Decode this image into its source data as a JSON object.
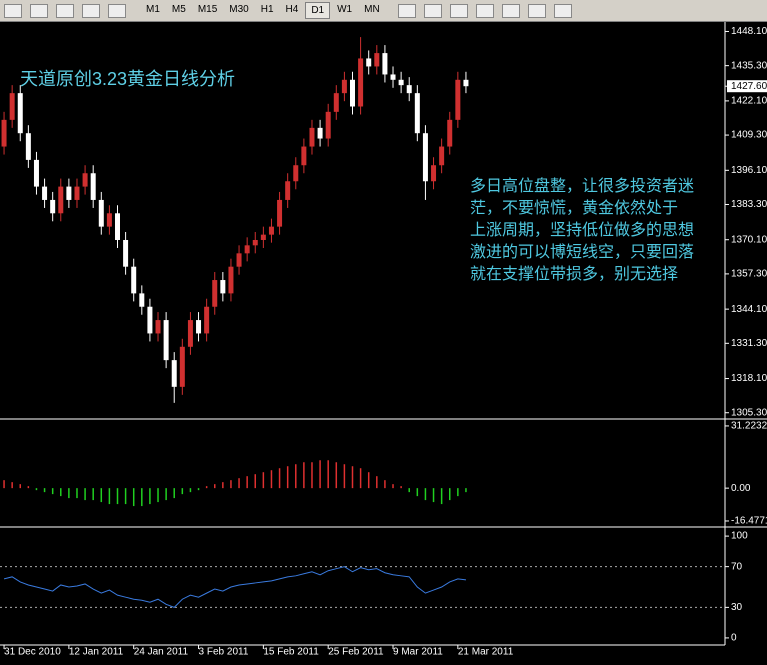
{
  "toolbar": {
    "timeframes": [
      "M1",
      "M5",
      "M15",
      "M30",
      "H1",
      "H4",
      "D1",
      "W1",
      "MN"
    ],
    "active": "D1"
  },
  "chart_data": [
    {
      "type": "candlestick",
      "title": "天道原创3.23黄金日线分析",
      "annotation": [
        "多日高位盘整，让很多投资者迷",
        "茫，不要惊慌，黄金依然处于",
        "上涨周期，坚持低位做多的思想",
        "激进的可以博短线空，只要回落",
        "就在支撑位带损多，别无选择"
      ],
      "categories": [
        "31 Dec 2010",
        null,
        null,
        null,
        null,
        null,
        null,
        null,
        "12 Jan 2011",
        null,
        null,
        null,
        null,
        null,
        null,
        null,
        "24 Jan 2011",
        null,
        null,
        null,
        null,
        null,
        null,
        null,
        "3 Feb 2011",
        null,
        null,
        null,
        null,
        null,
        null,
        null,
        "15 Feb 2011",
        null,
        null,
        null,
        null,
        null,
        null,
        null,
        "25 Feb 2011",
        null,
        null,
        null,
        null,
        null,
        null,
        null,
        "9 Mar 2011",
        null,
        null,
        null,
        null,
        null,
        null,
        null,
        "21 Mar 2011",
        null
      ],
      "open": [
        1405,
        1415,
        1425,
        1410,
        1400,
        1390,
        1385,
        1380,
        1390,
        1385,
        1390,
        1395,
        1385,
        1375,
        1380,
        1370,
        1360,
        1350,
        1345,
        1335,
        1340,
        1325,
        1315,
        1330,
        1340,
        1335,
        1345,
        1355,
        1350,
        1360,
        1365,
        1368,
        1370,
        1372,
        1375,
        1385,
        1392,
        1398,
        1405,
        1412,
        1408,
        1418,
        1425,
        1430,
        1420,
        1438,
        1435,
        1440,
        1432,
        1430,
        1428,
        1425,
        1410,
        1392,
        1398,
        1405,
        1415,
        1430
      ],
      "high": [
        1418,
        1428,
        1428,
        1413,
        1403,
        1393,
        1388,
        1393,
        1393,
        1393,
        1398,
        1398,
        1388,
        1383,
        1383,
        1373,
        1363,
        1353,
        1348,
        1343,
        1343,
        1328,
        1333,
        1343,
        1343,
        1348,
        1358,
        1358,
        1363,
        1368,
        1371,
        1373,
        1375,
        1378,
        1388,
        1395,
        1401,
        1408,
        1415,
        1415,
        1421,
        1428,
        1433,
        1433,
        1446,
        1441,
        1443,
        1443,
        1435,
        1433,
        1431,
        1428,
        1413,
        1401,
        1408,
        1418,
        1433,
        1433
      ],
      "low": [
        1402,
        1412,
        1407,
        1397,
        1387,
        1382,
        1377,
        1377,
        1382,
        1382,
        1387,
        1382,
        1372,
        1372,
        1367,
        1357,
        1347,
        1342,
        1332,
        1332,
        1322,
        1309,
        1312,
        1327,
        1332,
        1332,
        1342,
        1347,
        1347,
        1357,
        1362,
        1365,
        1367,
        1369,
        1372,
        1382,
        1389,
        1395,
        1402,
        1405,
        1405,
        1415,
        1422,
        1417,
        1417,
        1432,
        1432,
        1429,
        1427,
        1425,
        1422,
        1407,
        1385,
        1389,
        1395,
        1402,
        1412,
        1425
      ],
      "close": [
        1415,
        1425,
        1410,
        1400,
        1390,
        1385,
        1380,
        1390,
        1385,
        1390,
        1395,
        1385,
        1375,
        1380,
        1370,
        1360,
        1350,
        1345,
        1335,
        1340,
        1325,
        1315,
        1330,
        1340,
        1335,
        1345,
        1355,
        1350,
        1360,
        1365,
        1368,
        1370,
        1372,
        1375,
        1385,
        1392,
        1398,
        1405,
        1412,
        1408,
        1418,
        1425,
        1430,
        1420,
        1438,
        1435,
        1440,
        1432,
        1430,
        1428,
        1425,
        1410,
        1392,
        1398,
        1405,
        1415,
        1430,
        1427.6
      ],
      "up_color": "#d03030",
      "down_color": "#ffffff",
      "ylim": [
        1303.7,
        1450.9
      ],
      "yticks": [
        {
          "value": 1448.1,
          "label": "1448.10"
        },
        {
          "value": 1435.3,
          "label": "1435.30"
        },
        {
          "value": 1422.1,
          "label": "1422.10"
        },
        {
          "value": 1409.3,
          "label": "1409.30"
        },
        {
          "value": 1396.1,
          "label": "1396.10"
        },
        {
          "value": 1383.3,
          "label": "1383.30"
        },
        {
          "value": 1370.1,
          "label": "1370.10"
        },
        {
          "value": 1357.3,
          "label": "1357.30"
        },
        {
          "value": 1344.1,
          "label": "1344.10"
        },
        {
          "value": 1331.3,
          "label": "1331.30"
        },
        {
          "value": 1318.1,
          "label": "1318.10"
        },
        {
          "value": 1305.3,
          "label": "1305.30"
        }
      ],
      "current_price": {
        "value": 1427.6,
        "label": "1427.60"
      }
    },
    {
      "type": "histogram-bar",
      "values": [
        4,
        3,
        2,
        1,
        -1,
        -2,
        -3,
        -4,
        -5,
        -5,
        -6,
        -6,
        -7,
        -8,
        -8,
        -8,
        -9,
        -9,
        -8,
        -7,
        -6,
        -5,
        -3,
        -2,
        -1,
        1,
        2,
        3,
        4,
        5,
        6,
        7,
        8,
        9,
        10,
        11,
        12,
        13,
        13,
        14,
        14,
        13,
        12,
        11,
        10,
        8,
        6,
        4,
        2,
        1,
        -2,
        -4,
        -6,
        -7,
        -8,
        -6,
        -4,
        -2
      ],
      "up_color": "#e03030",
      "down_color": "#20d020",
      "ylim": [
        -18.5,
        33.2
      ],
      "yticks": [
        31.2232,
        {
          "value": 0,
          "label": "0.00"
        },
        -16.4771
      ]
    },
    {
      "type": "line",
      "values": [
        58,
        60,
        55,
        52,
        50,
        48,
        46,
        52,
        50,
        51,
        53,
        48,
        44,
        47,
        42,
        40,
        38,
        37,
        35,
        38,
        33,
        30,
        38,
        42,
        40,
        44,
        48,
        46,
        50,
        52,
        53,
        54,
        55,
        56,
        58,
        60,
        61,
        63,
        65,
        62,
        66,
        68,
        70,
        65,
        69,
        67,
        68,
        64,
        62,
        61,
        60,
        50,
        44,
        47,
        50,
        55,
        58,
        57
      ],
      "color": "#3a7be0",
      "ylim": [
        -5,
        106
      ],
      "yticks": [
        100,
        70,
        30,
        0
      ],
      "levels": [
        70,
        30
      ]
    }
  ]
}
